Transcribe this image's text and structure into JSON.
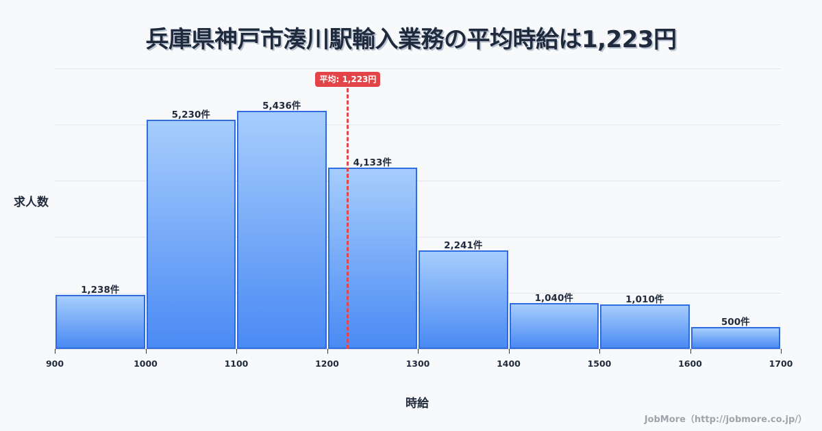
{
  "title": "兵庫県神戸市湊川駅輸入業務の平均時給は1,223円",
  "credit": "JobMore（http://jobmore.co.jp/）",
  "axes": {
    "ylabel": "求人数",
    "xlabel": "時給"
  },
  "mean": {
    "label": "平均: 1,223円",
    "value": 1223
  },
  "colors": {
    "bar_top": "#a6cdfc",
    "bar_bottom": "#4a8af4",
    "bar_border": "#2e6ae0",
    "mean_line": "#e2474b",
    "text": "#1f2a3c"
  },
  "chart_data": {
    "type": "bar",
    "subtype": "histogram",
    "title": "兵庫県神戸市湊川駅輸入業務の平均時給は1,223円",
    "xlabel": "時給",
    "ylabel": "求人数",
    "bins": [
      {
        "from": 900,
        "to": 1000,
        "value": 1238,
        "label": "1,238件"
      },
      {
        "from": 1000,
        "to": 1100,
        "value": 5230,
        "label": "5,230件"
      },
      {
        "from": 1100,
        "to": 1200,
        "value": 5436,
        "label": "5,436件"
      },
      {
        "from": 1200,
        "to": 1300,
        "value": 4133,
        "label": "4,133件"
      },
      {
        "from": 1300,
        "to": 1400,
        "value": 2241,
        "label": "2,241件"
      },
      {
        "from": 1400,
        "to": 1500,
        "value": 1040,
        "label": "1,040件"
      },
      {
        "from": 1500,
        "to": 1600,
        "value": 1010,
        "label": "1,010件"
      },
      {
        "from": 1600,
        "to": 1700,
        "value": 500,
        "label": "500件"
      }
    ],
    "categories": [
      "900-1000",
      "1000-1100",
      "1100-1200",
      "1200-1300",
      "1300-1400",
      "1400-1500",
      "1500-1600",
      "1600-1700"
    ],
    "values": [
      1238,
      5230,
      5436,
      4133,
      2241,
      1040,
      1010,
      500
    ],
    "x_ticks": [
      "900",
      "1000",
      "1100",
      "1200",
      "1300",
      "1400",
      "1500",
      "1600",
      "1700"
    ],
    "xlim": [
      900,
      1700
    ],
    "ylim": [
      0,
      6400
    ],
    "grid": true,
    "y_tick_labels_visible": false,
    "annotations": [
      {
        "type": "vline",
        "x": 1223,
        "label": "平均: 1,223円",
        "style": "dashed red"
      }
    ],
    "legend": null
  }
}
